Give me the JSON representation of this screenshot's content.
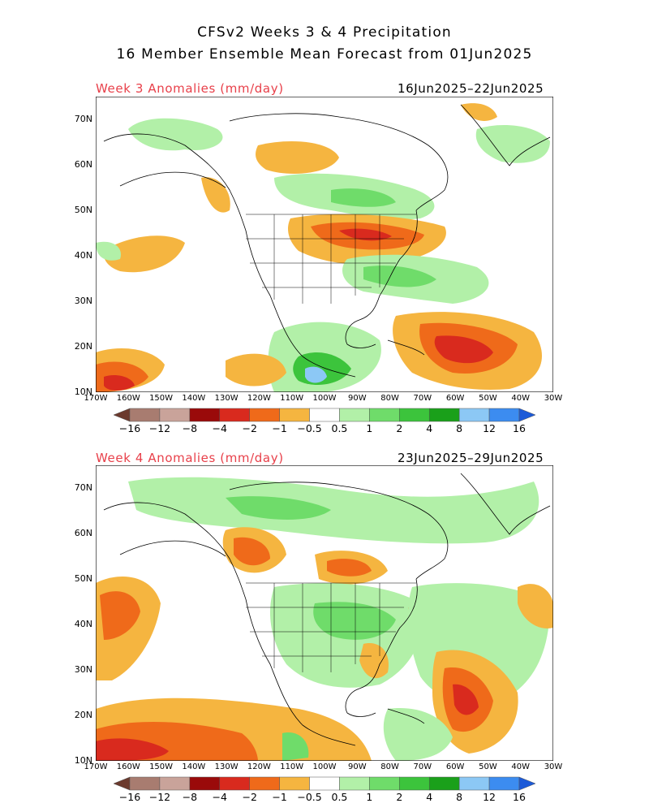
{
  "title_line1": "CFSv2 Weeks 3 & 4 Precipitation",
  "title_line2": "16 Member Ensemble Mean Forecast from 01Jun2025",
  "panels": [
    {
      "label": "Week 3 Anomalies (mm/day)",
      "dates": "16Jun2025–22Jun2025"
    },
    {
      "label": "Week 4 Anomalies (mm/day)",
      "dates": "23Jun2025–29Jun2025"
    }
  ],
  "lat_labels": [
    "70N",
    "60N",
    "50N",
    "40N",
    "30N",
    "20N",
    "10N"
  ],
  "lon_labels": [
    "170W",
    "160W",
    "150W",
    "140W",
    "130W",
    "120W",
    "110W",
    "100W",
    "90W",
    "80W",
    "70W",
    "60W",
    "50W",
    "40W",
    "30W"
  ],
  "colorbar": {
    "labels": [
      "−16",
      "−12",
      "−8",
      "−4",
      "−2",
      "−1",
      "−0.5",
      "0.5",
      "1",
      "2",
      "4",
      "8",
      "12",
      "16"
    ],
    "colors": [
      "#6b3a2e",
      "#a87c70",
      "#c9a39a",
      "#9a0a0a",
      "#d92a1e",
      "#ef6a1a",
      "#f5b540",
      "#ffffff",
      "#b2f0a8",
      "#6fdc6a",
      "#3cc43c",
      "#1aa01a",
      "#8cc8f5",
      "#3c8cf0",
      "#1c5ad8"
    ]
  },
  "map": {
    "lon_range": [
      -170,
      -30
    ],
    "lat_range": [
      10,
      75
    ]
  }
}
